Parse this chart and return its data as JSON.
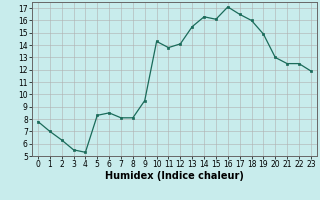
{
  "x": [
    0,
    1,
    2,
    3,
    4,
    5,
    6,
    7,
    8,
    9,
    10,
    11,
    12,
    13,
    14,
    15,
    16,
    17,
    18,
    19,
    20,
    21,
    22,
    23
  ],
  "y": [
    7.8,
    7.0,
    6.3,
    5.5,
    5.3,
    8.3,
    8.5,
    8.1,
    8.1,
    9.5,
    14.3,
    13.8,
    14.1,
    15.5,
    16.3,
    16.1,
    17.1,
    16.5,
    16.0,
    14.9,
    13.0,
    12.5,
    12.5,
    11.9
  ],
  "line_color": "#1a6b5a",
  "marker": "s",
  "marker_size": 2,
  "bg_color": "#c8ecec",
  "grid_color": "#b0b0b0",
  "xlabel": "Humidex (Indice chaleur)",
  "ylim": [
    5,
    17.5
  ],
  "xlim": [
    -0.5,
    23.5
  ],
  "yticks": [
    5,
    6,
    7,
    8,
    9,
    10,
    11,
    12,
    13,
    14,
    15,
    16,
    17
  ],
  "xticks": [
    0,
    1,
    2,
    3,
    4,
    5,
    6,
    7,
    8,
    9,
    10,
    11,
    12,
    13,
    14,
    15,
    16,
    17,
    18,
    19,
    20,
    21,
    22,
    23
  ],
  "xlabel_fontsize": 7,
  "tick_fontsize": 5.5
}
